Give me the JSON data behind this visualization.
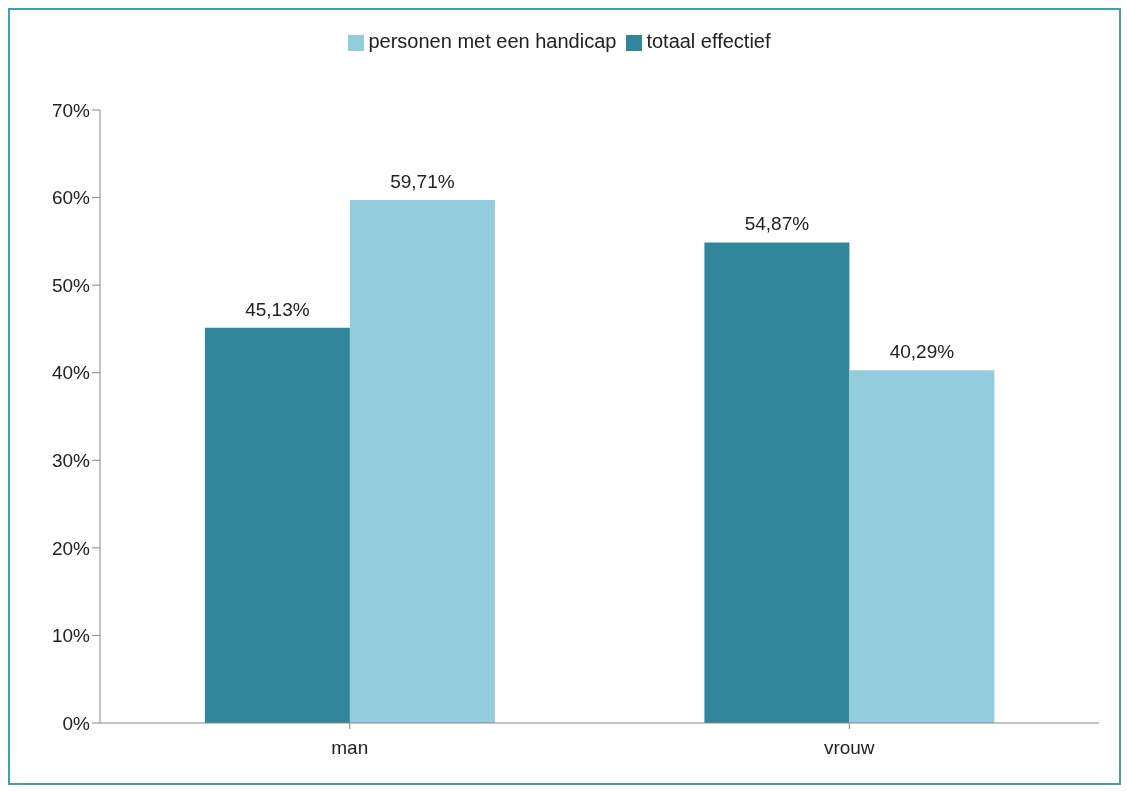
{
  "chart_data": {
    "type": "bar",
    "categories": [
      "man",
      "vrouw"
    ],
    "series": [
      {
        "name": "totaal effectief",
        "color": "#31869b",
        "values": [
          45.13,
          54.87
        ],
        "value_labels": [
          "45,13%",
          "54,87%"
        ]
      },
      {
        "name": "personen met een handicap",
        "color": "#93cddd",
        "values": [
          59.71,
          40.29
        ],
        "value_labels": [
          "59,71%",
          "40,29%"
        ]
      }
    ],
    "ylim": [
      0,
      70
    ],
    "yticks": [
      {
        "value": 0,
        "label": "0%"
      },
      {
        "value": 10,
        "label": "10%"
      },
      {
        "value": 20,
        "label": "20%"
      },
      {
        "value": 30,
        "label": "30%"
      },
      {
        "value": 40,
        "label": "40%"
      },
      {
        "value": 50,
        "label": "50%"
      },
      {
        "value": 60,
        "label": "60%"
      },
      {
        "value": 70,
        "label": "70%"
      }
    ],
    "grid": false,
    "legend": "top"
  }
}
